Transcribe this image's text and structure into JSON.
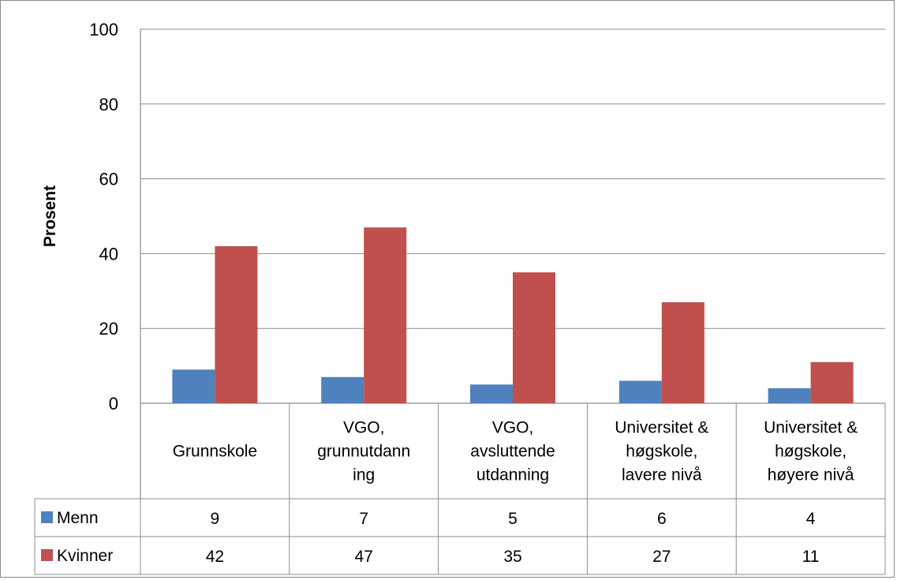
{
  "chart_data": {
    "type": "bar",
    "title": "",
    "xlabel": "",
    "ylabel": "Prosent",
    "ylim": [
      0,
      100
    ],
    "yticks": [
      0,
      20,
      40,
      60,
      80,
      100
    ],
    "grid": true,
    "legend": "data-table",
    "categories": [
      [
        "Grunnskole"
      ],
      [
        "VGO,",
        "grunnutdann",
        "ing"
      ],
      [
        "VGO,",
        "avsluttende",
        "utdanning"
      ],
      [
        "Universitet &",
        "høgskole,",
        "lavere nivå"
      ],
      [
        "Universitet &",
        "høgskole,",
        "høyere nivå"
      ]
    ],
    "series": [
      {
        "name": "Menn",
        "color": "#4f81bd",
        "values": [
          9,
          7,
          5,
          6,
          4
        ],
        "labels": [
          "9",
          "7",
          "5",
          "6",
          "4"
        ]
      },
      {
        "name": "Kvinner",
        "color": "#c0504d",
        "values": [
          42,
          47,
          35,
          27,
          11
        ],
        "labels": [
          "42",
          "47",
          "35",
          "27",
          "11"
        ]
      }
    ]
  }
}
